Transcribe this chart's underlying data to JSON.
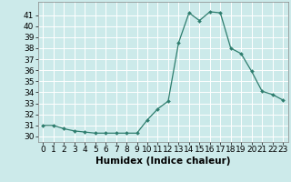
{
  "x": [
    0,
    1,
    2,
    3,
    4,
    5,
    6,
    7,
    8,
    9,
    10,
    11,
    12,
    13,
    14,
    15,
    16,
    17,
    18,
    19,
    20,
    21,
    22,
    23
  ],
  "y": [
    31.0,
    31.0,
    30.7,
    30.5,
    30.4,
    30.3,
    30.3,
    30.3,
    30.3,
    30.3,
    31.5,
    32.5,
    33.2,
    38.5,
    41.2,
    40.5,
    41.3,
    41.2,
    38.0,
    37.5,
    35.9,
    34.1,
    33.8,
    33.3
  ],
  "xlabel": "Humidex (Indice chaleur)",
  "xlim": [
    -0.5,
    23.5
  ],
  "ylim": [
    29.5,
    42.2
  ],
  "yticks": [
    30,
    31,
    32,
    33,
    34,
    35,
    36,
    37,
    38,
    39,
    40,
    41
  ],
  "xticks": [
    0,
    1,
    2,
    3,
    4,
    5,
    6,
    7,
    8,
    9,
    10,
    11,
    12,
    13,
    14,
    15,
    16,
    17,
    18,
    19,
    20,
    21,
    22,
    23
  ],
  "xtick_labels": [
    "0",
    "1",
    "2",
    "3",
    "4",
    "5",
    "6",
    "7",
    "8",
    "9",
    "10",
    "11",
    "12",
    "13",
    "14",
    "15",
    "16",
    "17",
    "18",
    "19",
    "20",
    "21",
    "22",
    "23"
  ],
  "line_color": "#2e7d6e",
  "marker": "D",
  "marker_size": 2.0,
  "bg_color": "#cceaea",
  "grid_color": "#ffffff",
  "xlabel_fontsize": 7.5,
  "tick_fontsize": 6.5
}
